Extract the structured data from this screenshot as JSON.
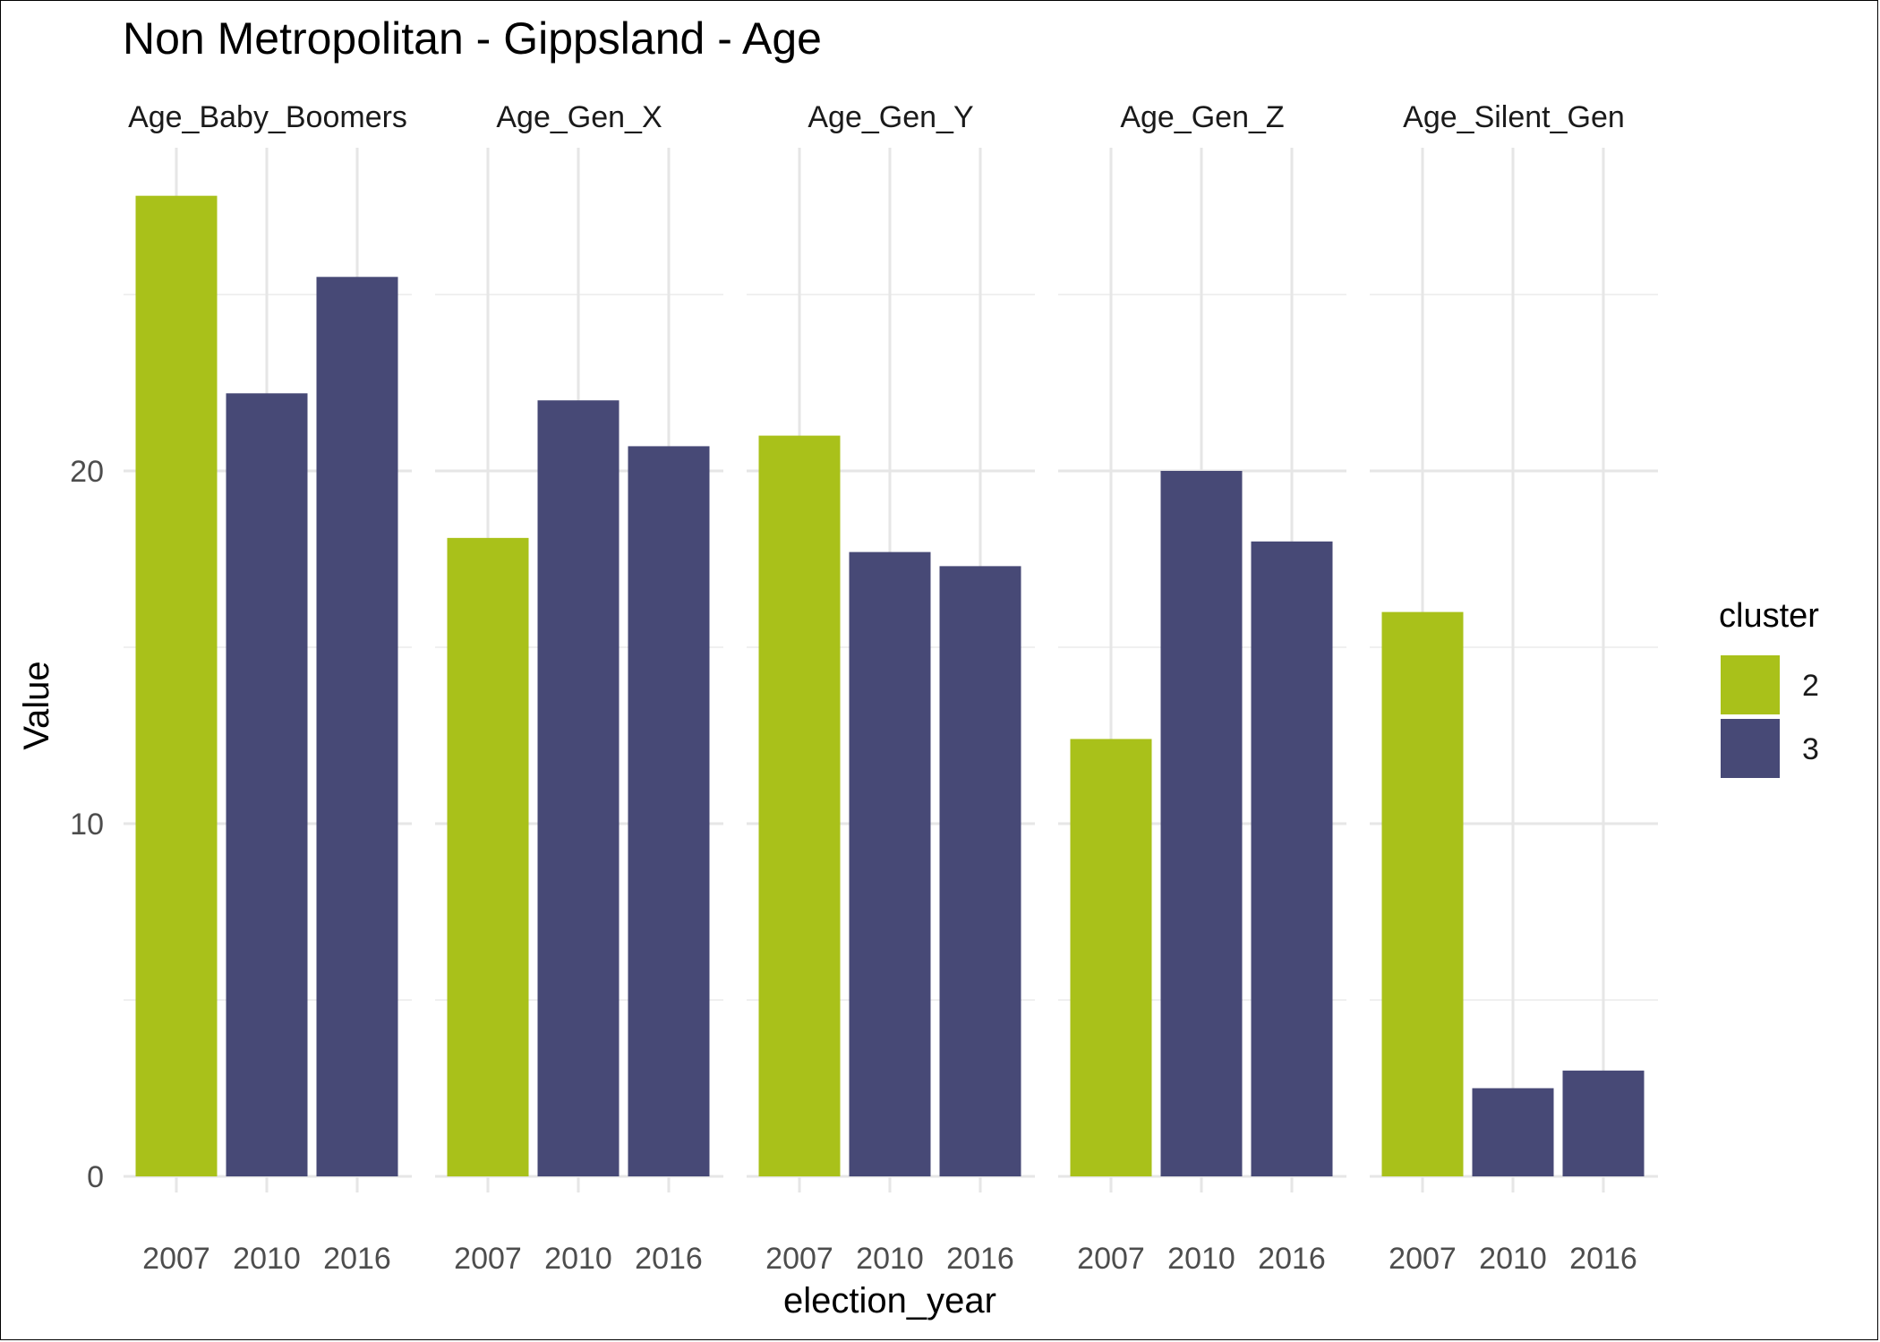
{
  "chart_data": {
    "type": "bar",
    "title": "Non Metropolitan - Gippsland - Age",
    "xlabel": "election_year",
    "ylabel": "Value",
    "ylim": [
      0,
      29
    ],
    "yticks": [
      0,
      10,
      20
    ],
    "grid": true,
    "categories": [
      "2007",
      "2010",
      "2016"
    ],
    "legend": {
      "title": "cluster",
      "placement": "right",
      "entries": [
        {
          "label": "2",
          "color": "#a9c11a"
        },
        {
          "label": "3",
          "color": "#474976"
        }
      ]
    },
    "facets": [
      {
        "name": "Age_Baby_Boomers",
        "values": [
          27.8,
          22.2,
          25.5
        ],
        "clusters": [
          "2",
          "3",
          "3"
        ]
      },
      {
        "name": "Age_Gen_X",
        "values": [
          18.1,
          22.0,
          20.7
        ],
        "clusters": [
          "2",
          "3",
          "3"
        ]
      },
      {
        "name": "Age_Gen_Y",
        "values": [
          21.0,
          17.7,
          17.3
        ],
        "clusters": [
          "2",
          "3",
          "3"
        ]
      },
      {
        "name": "Age_Gen_Z",
        "values": [
          12.4,
          20.0,
          18.0
        ],
        "clusters": [
          "2",
          "3",
          "3"
        ]
      },
      {
        "name": "Age_Silent_Gen",
        "values": [
          16.0,
          2.5,
          3.0
        ],
        "clusters": [
          "2",
          "3",
          "3"
        ]
      }
    ]
  }
}
